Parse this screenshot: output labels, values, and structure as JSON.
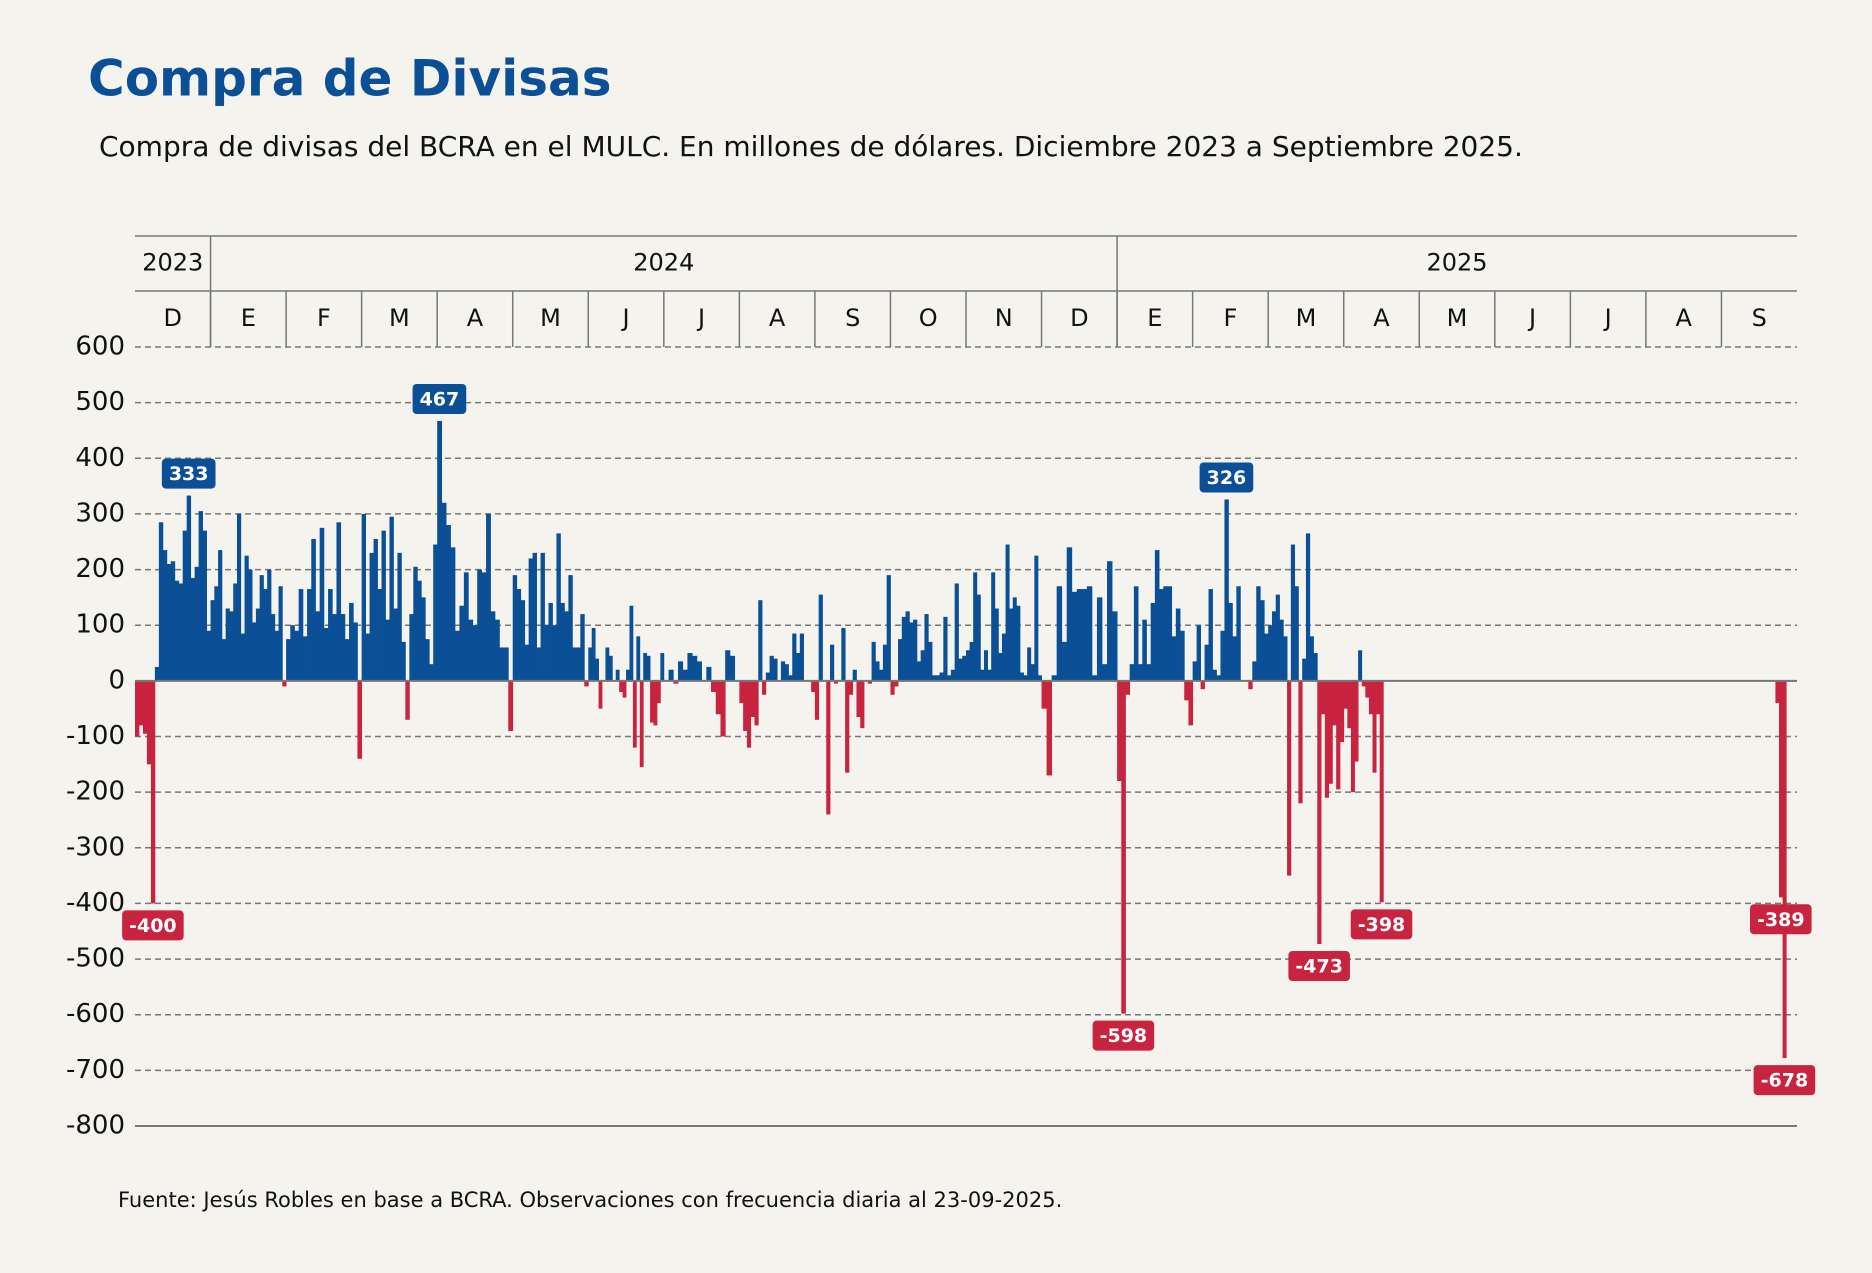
{
  "chart_data": {
    "type": "bar",
    "title": "Compra de Divisas",
    "subtitle": "Compra de divisas del BCRA en el MULC. En millones de dólares. Diciembre 2023 a Septiembre 2025.",
    "source": "Fuente: Jesús Robles en base a BCRA. Observaciones con frecuencia diaria al 23-09-2025.",
    "positive_color": "#0b4f96",
    "negative_color": "#c8233f",
    "ylim": [
      -800,
      600
    ],
    "yticks": [
      600,
      500,
      400,
      300,
      200,
      100,
      0,
      -100,
      -200,
      -300,
      -400,
      -500,
      -600,
      -700,
      -800
    ],
    "grid": true,
    "years": [
      {
        "label": "2023",
        "months": [
          {
            "label": "D",
            "values": [
              -100,
              -80,
              -95,
              -150,
              -400,
              25,
              285,
              235,
              210,
              215,
              180,
              175,
              270,
              333,
              185,
              205,
              305,
              270,
              90
            ],
            "value_labels": [
              null,
              null,
              null,
              null,
              "-400",
              null,
              null,
              null,
              null,
              null,
              null,
              null,
              null,
              "333",
              null,
              null,
              null,
              null,
              null
            ]
          }
        ]
      },
      {
        "label": "2024",
        "months": [
          {
            "label": "E",
            "values": [
              145,
              170,
              235,
              75,
              130,
              125,
              175,
              300,
              85,
              225,
              200,
              105,
              130,
              190,
              165,
              200,
              120,
              90,
              170,
              -10
            ]
          },
          {
            "label": "F",
            "values": [
              75,
              100,
              90,
              165,
              80,
              165,
              255,
              125,
              275,
              95,
              165,
              120,
              285,
              120,
              75,
              140,
              105,
              -140
            ]
          },
          {
            "label": "M",
            "values": [
              300,
              85,
              230,
              255,
              165,
              270,
              110,
              295,
              130,
              230,
              70,
              -70,
              120,
              205,
              180,
              150,
              75,
              30,
              245
            ]
          },
          {
            "label": "A",
            "values": [
              467,
              320,
              280,
              240,
              90,
              135,
              195,
              110,
              100,
              200,
              195,
              300,
              125,
              110,
              60,
              60,
              -90
            ],
            "value_labels": [
              "467",
              null,
              null,
              null,
              null,
              null,
              null,
              null,
              null,
              null,
              null,
              null,
              null,
              null,
              null,
              null,
              null
            ]
          },
          {
            "label": "M",
            "values": [
              190,
              165,
              145,
              65,
              220,
              230,
              60,
              230,
              100,
              140,
              100,
              265,
              140,
              125,
              190,
              60,
              60,
              120,
              -10
            ]
          },
          {
            "label": "J",
            "values": [
              60,
              95,
              40,
              -50,
              0,
              60,
              45,
              0,
              20,
              -20,
              -30,
              20,
              135,
              -120,
              80,
              -155,
              50,
              45,
              -75,
              -80,
              -40,
              50
            ]
          },
          {
            "label": "J",
            "values": [
              0,
              20,
              -5,
              35,
              20,
              50,
              45,
              35,
              0,
              25,
              -20,
              -60,
              -100,
              55,
              45,
              0
            ]
          },
          {
            "label": "A",
            "values": [
              -40,
              -90,
              -120,
              -65,
              -80,
              145,
              -25,
              15,
              45,
              40,
              0,
              35,
              30,
              10,
              85,
              50,
              85,
              0,
              0,
              -20
            ]
          },
          {
            "label": "S",
            "values": [
              -70,
              155,
              0,
              -240,
              65,
              -5,
              0,
              95,
              -165,
              -25,
              20,
              -65,
              -85,
              0,
              -5,
              70,
              35,
              20,
              65,
              190
            ]
          },
          {
            "label": "O",
            "values": [
              -25,
              -10,
              75,
              115,
              125,
              105,
              110,
              35,
              55,
              120,
              70,
              10,
              10,
              15,
              115,
              10,
              20,
              175,
              40,
              45
            ]
          },
          {
            "label": "N",
            "values": [
              55,
              70,
              195,
              155,
              20,
              55,
              20,
              195,
              130,
              50,
              85,
              245,
              130,
              150,
              135,
              15,
              10,
              60,
              30,
              225,
              10
            ]
          },
          {
            "label": "D",
            "values": [
              -50,
              -170,
              10,
              170,
              70,
              240,
              160,
              165,
              165,
              170,
              10,
              150,
              30,
              215,
              125
            ]
          }
        ]
      },
      {
        "label": "2025",
        "months": [
          {
            "label": "E",
            "values": [
              -180,
              -598,
              -25,
              30,
              170,
              30,
              110,
              30,
              140,
              235,
              165,
              170,
              170,
              80,
              130,
              90,
              -35,
              -80
            ],
            "value_labels": [
              null,
              "-598",
              null,
              null,
              null,
              null,
              null,
              null,
              null,
              null,
              null,
              null,
              null,
              null,
              null,
              null,
              null,
              null
            ]
          },
          {
            "label": "F",
            "values": [
              35,
              100,
              -15,
              65,
              165,
              20,
              10,
              90,
              326,
              140,
              80,
              170,
              0,
              0,
              -15,
              35,
              170,
              145,
              85
            ],
            "value_labels": [
              null,
              null,
              null,
              null,
              null,
              null,
              null,
              null,
              "326",
              null,
              null,
              null,
              null,
              null,
              null,
              null,
              null,
              null,
              null
            ]
          },
          {
            "label": "M",
            "values": [
              100,
              125,
              155,
              110,
              80,
              -350,
              245,
              170,
              -220,
              40,
              265,
              80,
              50,
              -473,
              -60,
              -210,
              -185,
              -80,
              -195,
              -110
            ],
            "value_labels": [
              null,
              null,
              null,
              null,
              null,
              null,
              null,
              null,
              null,
              null,
              null,
              null,
              null,
              "-473",
              null,
              null,
              null,
              null,
              null,
              null
            ]
          },
          {
            "label": "A",
            "values": [
              -50,
              -85,
              -200,
              -145,
              55,
              -10,
              -30,
              -60,
              -165,
              -60,
              -398,
              0,
              0,
              0,
              0,
              0,
              0,
              0,
              0,
              0,
              0
            ],
            "value_labels": [
              null,
              null,
              null,
              null,
              null,
              null,
              null,
              null,
              null,
              null,
              "-398",
              null,
              null,
              null,
              null,
              null,
              null,
              null,
              null,
              null,
              null
            ]
          },
          {
            "label": "M",
            "values": [
              0,
              0,
              0,
              0,
              0,
              0,
              0,
              0,
              0,
              0,
              0,
              0,
              0,
              0,
              0,
              0,
              0,
              0,
              0,
              0
            ]
          },
          {
            "label": "J",
            "values": [
              0,
              0,
              0,
              0,
              0,
              0,
              0,
              0,
              0,
              0,
              0,
              0,
              0,
              0,
              0,
              0,
              0,
              0,
              0,
              0
            ]
          },
          {
            "label": "J",
            "values": [
              0,
              0,
              0,
              0,
              0,
              0,
              0,
              0,
              0,
              0,
              0,
              0,
              0,
              0,
              0,
              0,
              0,
              0,
              0,
              0,
              0,
              0
            ]
          },
          {
            "label": "A",
            "values": [
              0,
              0,
              0,
              0,
              0,
              0,
              0,
              0,
              0,
              0,
              0,
              0,
              0,
              0,
              0,
              0,
              0,
              0,
              0,
              0
            ]
          },
          {
            "label": "S",
            "values": [
              0,
              0,
              0,
              0,
              0,
              0,
              0,
              0,
              0,
              0,
              0,
              0,
              0,
              0,
              0,
              -40,
              -389,
              -678,
              null,
              null,
              null
            ],
            "value_labels": [
              null,
              null,
              null,
              null,
              null,
              null,
              null,
              null,
              null,
              null,
              null,
              null,
              null,
              null,
              null,
              null,
              "-389",
              "-678",
              null,
              null,
              null
            ]
          }
        ]
      }
    ]
  }
}
